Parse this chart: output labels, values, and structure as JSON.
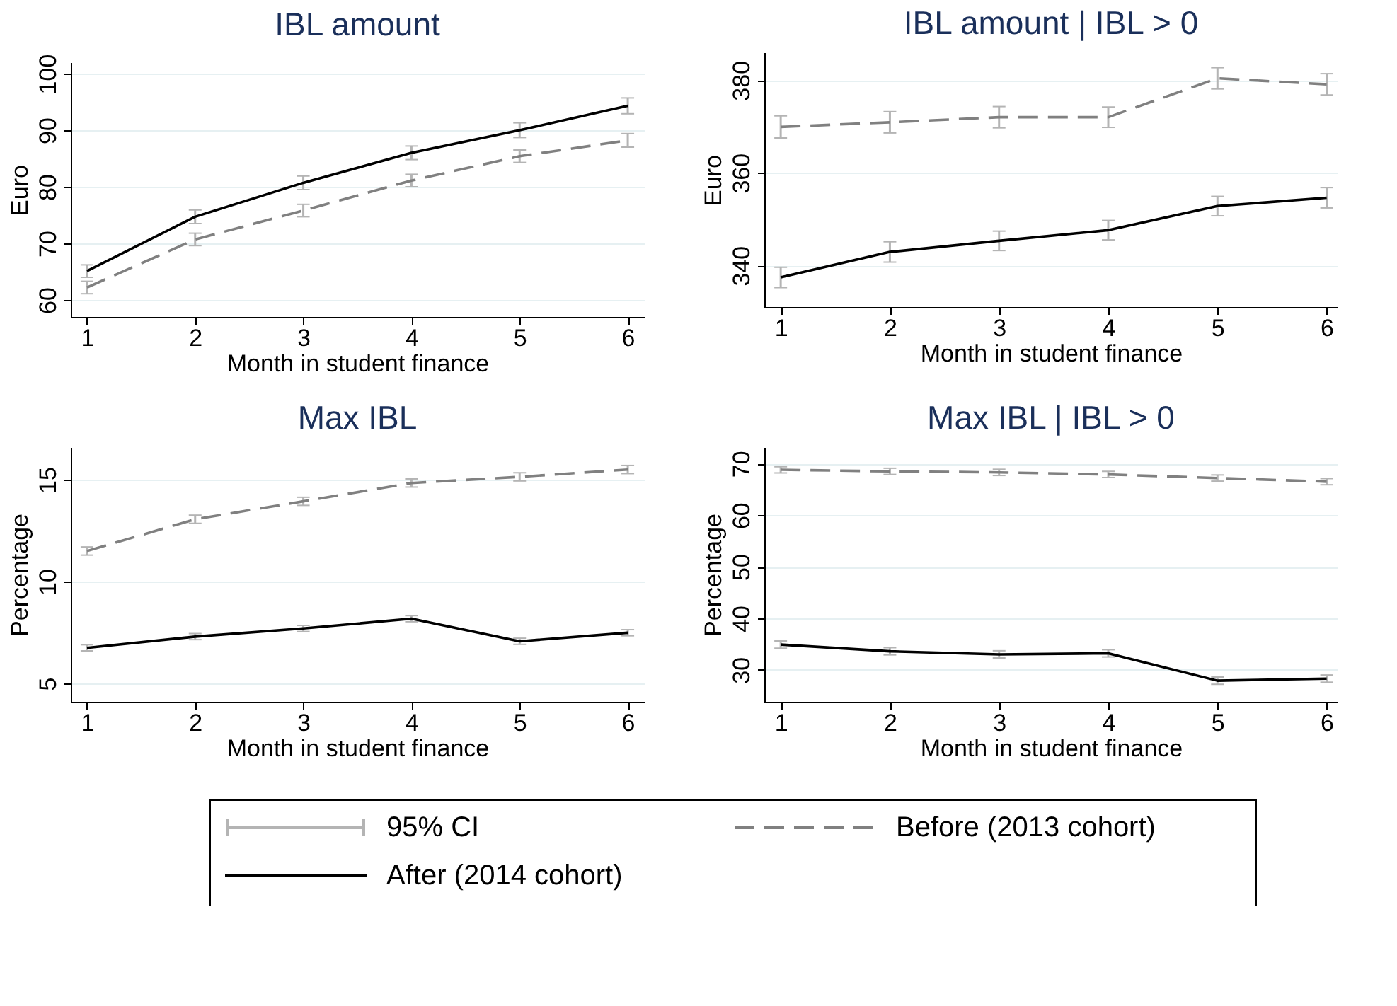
{
  "chart_data": [
    {
      "type": "line",
      "title": "IBL amount",
      "xlabel": "Month in student finance",
      "ylabel": "Euro",
      "x": [
        1,
        2,
        3,
        4,
        5,
        6
      ],
      "xlim": [
        0.85,
        6.15
      ],
      "xticks": [
        1,
        2,
        3,
        4,
        5,
        6
      ],
      "ylim": [
        57,
        102
      ],
      "yticks": [
        60,
        70,
        80,
        90,
        100
      ],
      "grid": "y",
      "legend": "bottom",
      "annotations": [
        "95% CI"
      ],
      "series": [
        {
          "name": "Before (2013 cohort)",
          "color": "#808080",
          "line_style": "dashed",
          "values": [
            62.2,
            70.7,
            75.8,
            81.1,
            85.4,
            88.2
          ],
          "errors": [
            1.1,
            1.1,
            1.1,
            1.1,
            1.1,
            1.2
          ]
        },
        {
          "name": "After (2014 cohort)",
          "color": "#000000",
          "line_style": "solid",
          "values": [
            65.1,
            74.7,
            80.7,
            86.0,
            90.0,
            94.3
          ],
          "errors": [
            1.1,
            1.2,
            1.2,
            1.2,
            1.3,
            1.4
          ]
        }
      ]
    },
    {
      "type": "line",
      "title": "IBL amount | IBL > 0",
      "xlabel": "Month in student finance",
      "ylabel": "Euro",
      "x": [
        1,
        2,
        3,
        4,
        5,
        6
      ],
      "xlim": [
        0.85,
        6.1
      ],
      "xticks": [
        1,
        2,
        3,
        4,
        5,
        6
      ],
      "ylim": [
        331,
        386
      ],
      "yticks": [
        340,
        360,
        380
      ],
      "grid": "y",
      "legend": "bottom",
      "series": [
        {
          "name": "Before (2013 cohort)",
          "color": "#808080",
          "line_style": "dashed",
          "values": [
            369.9,
            370.9,
            372.0,
            372.0,
            380.4,
            379.1
          ],
          "errors": [
            2.4,
            2.3,
            2.3,
            2.2,
            2.3,
            2.3
          ]
        },
        {
          "name": "After (2014 cohort)",
          "color": "#000000",
          "line_style": "solid",
          "values": [
            337.4,
            342.9,
            345.3,
            347.6,
            352.8,
            354.6
          ],
          "errors": [
            2.2,
            2.2,
            2.1,
            2.1,
            2.1,
            2.2
          ]
        }
      ]
    },
    {
      "type": "line",
      "title": "Max IBL",
      "xlabel": "Month in student finance",
      "ylabel": "Percentage",
      "x": [
        1,
        2,
        3,
        4,
        5,
        6
      ],
      "xlim": [
        0.85,
        6.15
      ],
      "xticks": [
        1,
        2,
        3,
        4,
        5,
        6
      ],
      "ylim": [
        4.1,
        16.6
      ],
      "yticks": [
        5,
        10,
        15
      ],
      "grid": "y",
      "legend": "bottom",
      "series": [
        {
          "name": "Before (2013 cohort)",
          "color": "#808080",
          "line_style": "dashed",
          "values": [
            11.5,
            13.06,
            13.94,
            14.84,
            15.14,
            15.5
          ],
          "errors": [
            0.2,
            0.2,
            0.2,
            0.2,
            0.2,
            0.2
          ]
        },
        {
          "name": "After (2014 cohort)",
          "color": "#000000",
          "line_style": "solid",
          "values": [
            6.75,
            7.3,
            7.7,
            8.18,
            7.07,
            7.49
          ],
          "errors": [
            0.15,
            0.15,
            0.15,
            0.15,
            0.15,
            0.15
          ]
        }
      ]
    },
    {
      "type": "line",
      "title": "Max IBL | IBL > 0",
      "xlabel": "Month in student finance",
      "ylabel": "Percentage",
      "x": [
        1,
        2,
        3,
        4,
        5,
        6
      ],
      "xlim": [
        0.85,
        6.1
      ],
      "xticks": [
        1,
        2,
        3,
        4,
        5,
        6
      ],
      "ylim": [
        23.8,
        73.2
      ],
      "yticks": [
        30,
        40,
        50,
        60,
        70
      ],
      "grid": "y",
      "legend": "bottom",
      "series": [
        {
          "name": "Before (2013 cohort)",
          "color": "#808080",
          "line_style": "dashed",
          "values": [
            68.8,
            68.5,
            68.3,
            67.9,
            67.2,
            66.5
          ],
          "errors": [
            0.6,
            0.6,
            0.6,
            0.6,
            0.6,
            0.6
          ]
        },
        {
          "name": "After (2014 cohort)",
          "color": "#000000",
          "line_style": "solid",
          "values": [
            34.9,
            33.6,
            33.0,
            33.2,
            27.9,
            28.3
          ],
          "errors": [
            0.7,
            0.7,
            0.7,
            0.7,
            0.7,
            0.7
          ]
        }
      ]
    }
  ]
}
